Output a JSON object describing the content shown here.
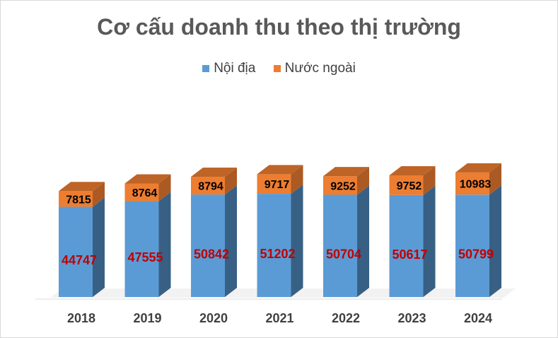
{
  "chart_data": {
    "type": "bar",
    "stacked": true,
    "title": "Cơ cấu doanh thu theo thị trường",
    "categories": [
      "2018",
      "2019",
      "2020",
      "2021",
      "2022",
      "2023",
      "2024"
    ],
    "series": [
      {
        "name": "Nội địa",
        "values": [
          44747,
          47555,
          50842,
          51202,
          50704,
          50617,
          50799
        ],
        "color": "#5b9bd5",
        "label_color": "#c00000"
      },
      {
        "name": "Nước ngoài",
        "values": [
          7815,
          8764,
          8794,
          9717,
          9252,
          9752,
          10983
        ],
        "color": "#ed7d31",
        "label_color": "#000000"
      }
    ],
    "legend_position": "top",
    "grid": false,
    "style": "3d"
  }
}
